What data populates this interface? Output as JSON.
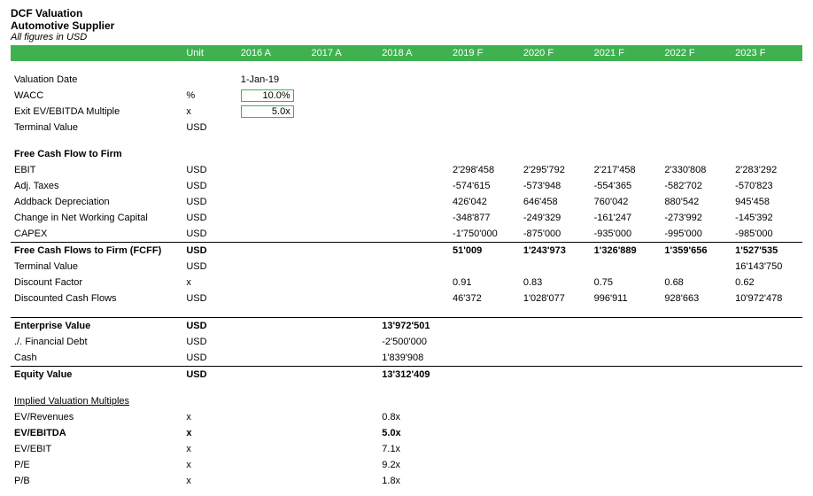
{
  "header": {
    "title": "DCF Valuation",
    "subtitle": "Automotive Supplier",
    "note": "All figures in USD"
  },
  "columns": {
    "unit": "Unit",
    "years": [
      "2016 A",
      "2017 A",
      "2018 A",
      "2019 F",
      "2020 F",
      "2021 F",
      "2022 F",
      "2023 F"
    ]
  },
  "assumptions": {
    "valuation_date": {
      "label": "Valuation Date",
      "unit": "",
      "value": "1-Jan-19"
    },
    "wacc": {
      "label": "WACC",
      "unit": "%",
      "value": "10.0%"
    },
    "exit_mult": {
      "label": "Exit EV/EBITDA Multiple",
      "unit": "x",
      "value": "5.0x"
    },
    "terminal_value": {
      "label": "Terminal Value",
      "unit": "USD"
    }
  },
  "fcff_section": "Free Cash Flow to Firm",
  "fcff": {
    "ebit": {
      "label": "EBIT",
      "unit": "USD",
      "v": [
        "2'298'458",
        "2'295'792",
        "2'217'458",
        "2'330'808",
        "2'283'292"
      ]
    },
    "taxes": {
      "label": "Adj. Taxes",
      "unit": "USD",
      "v": [
        "-574'615",
        "-573'948",
        "-554'365",
        "-582'702",
        "-570'823"
      ]
    },
    "dep": {
      "label": "Addback Depreciation",
      "unit": "USD",
      "v": [
        "426'042",
        "646'458",
        "760'042",
        "880'542",
        "945'458"
      ]
    },
    "nwc": {
      "label": "Change in Net Working Capital",
      "unit": "USD",
      "v": [
        "-348'877",
        "-249'329",
        "-161'247",
        "-273'992",
        "-145'392"
      ]
    },
    "capex": {
      "label": "CAPEX",
      "unit": "USD",
      "v": [
        "-1'750'000",
        "-875'000",
        "-935'000",
        "-995'000",
        "-985'000"
      ]
    },
    "fcff_total": {
      "label": "Free Cash Flows to Firm (FCFF)",
      "unit": "USD",
      "v": [
        "51'009",
        "1'243'973",
        "1'326'889",
        "1'359'656",
        "1'527'535"
      ]
    },
    "terminal": {
      "label": "Terminal Value",
      "unit": "USD",
      "v": [
        "",
        "",
        "",
        "",
        "16'143'750"
      ]
    },
    "df": {
      "label": "Discount Factor",
      "unit": "x",
      "v": [
        "0.91",
        "0.83",
        "0.75",
        "0.68",
        "0.62"
      ]
    },
    "dcf": {
      "label": "Discounted Cash Flows",
      "unit": "USD",
      "v": [
        "46'372",
        "1'028'077",
        "996'911",
        "928'663",
        "10'972'478"
      ]
    }
  },
  "valuation": {
    "ev": {
      "label": "Enterprise Value",
      "unit": "USD",
      "value": "13'972'501"
    },
    "debt": {
      "label": "./. Financial Debt",
      "unit": "USD",
      "value": "-2'500'000"
    },
    "cash": {
      "label": "Cash",
      "unit": "USD",
      "value": "1'839'908"
    },
    "equity": {
      "label": "Equity Value",
      "unit": "USD",
      "value": "13'312'409"
    }
  },
  "multiples_section": "Implied Valuation Multiples",
  "multiples": {
    "ev_rev": {
      "label": "EV/Revenues",
      "unit": "x",
      "value": "0.8x"
    },
    "ev_ebitda": {
      "label": "EV/EBITDA",
      "unit": "x",
      "value": "5.0x"
    },
    "ev_ebit": {
      "label": "EV/EBIT",
      "unit": "x",
      "value": "7.1x"
    },
    "pe": {
      "label": "P/E",
      "unit": "x",
      "value": "9.2x"
    },
    "pb": {
      "label": "P/B",
      "unit": "x",
      "value": "1.8x"
    }
  },
  "colors": {
    "accent": "#3fb24f",
    "text": "#000000",
    "bg": "#ffffff"
  }
}
